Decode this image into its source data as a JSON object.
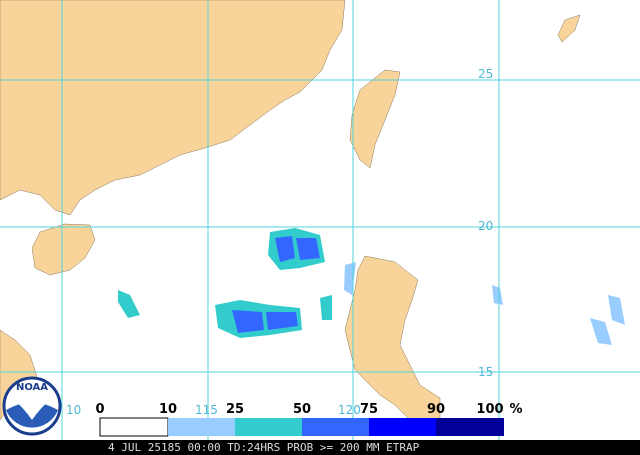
{
  "map": {
    "lat_labels": [
      "25",
      "20",
      "15"
    ],
    "lon_labels": [
      "10",
      "115",
      "120"
    ],
    "logo": "NOAA",
    "legend": {
      "ticks": [
        "0",
        "10",
        "25",
        "50",
        "75",
        "90",
        "100"
      ],
      "unit": "%"
    },
    "footer": "4 JUL 25185 00:00 TD:24HRS PROB >= 200 MM ETRAP"
  }
}
